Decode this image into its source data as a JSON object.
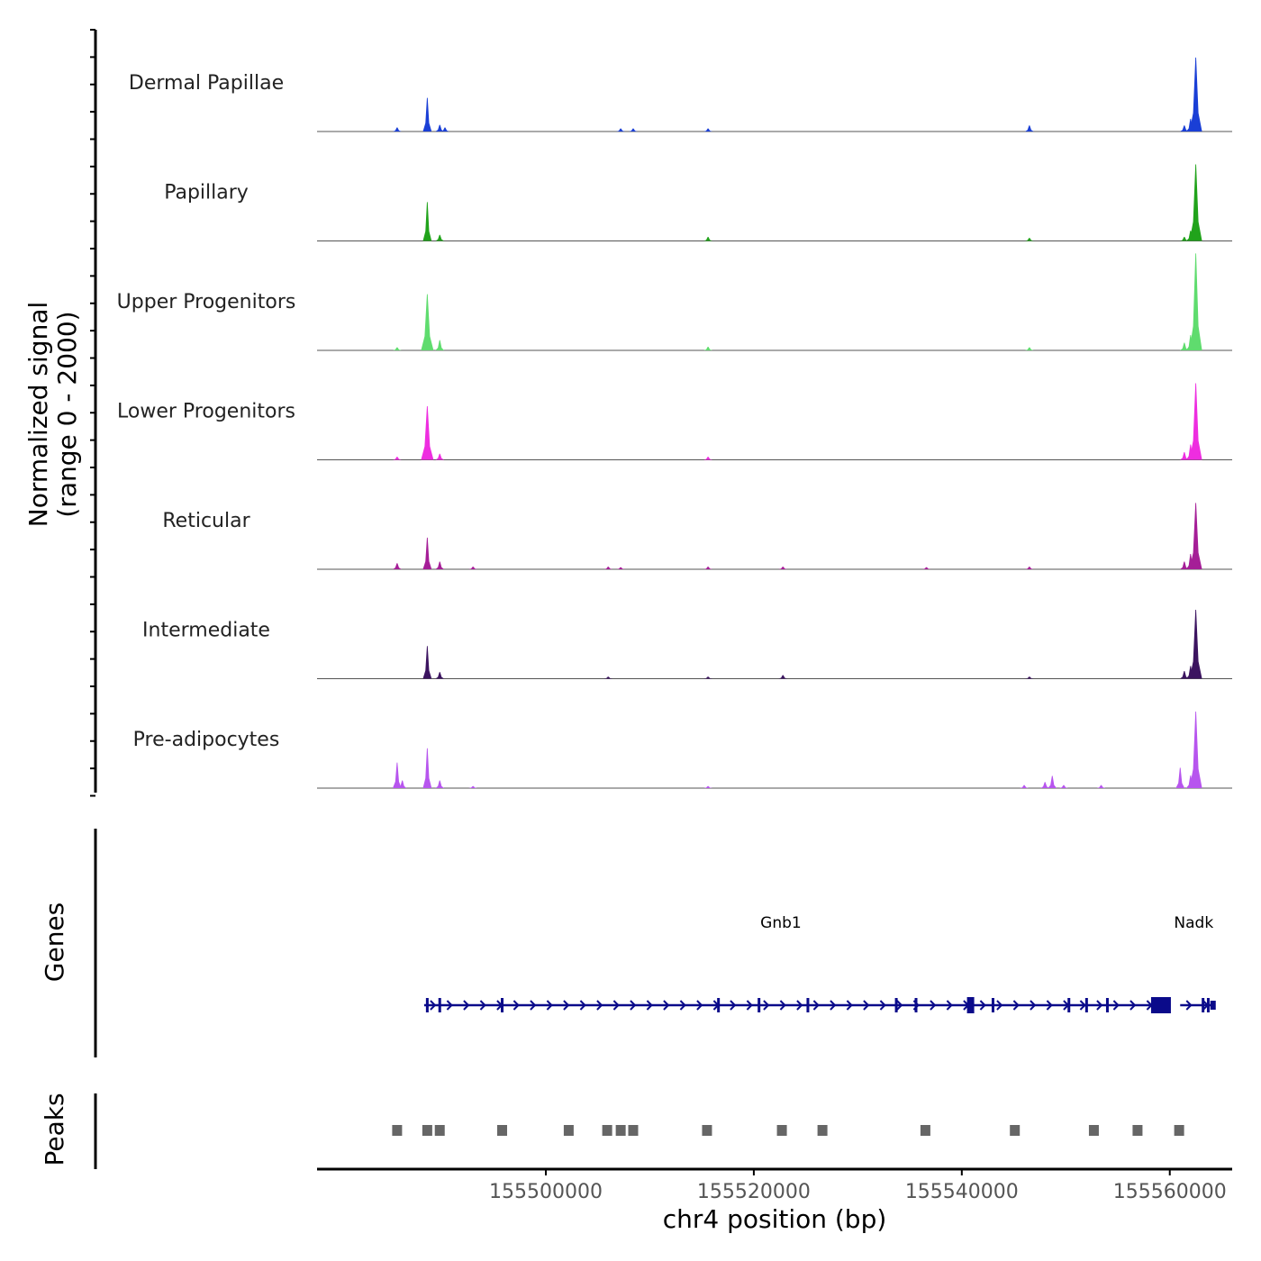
{
  "chart_data": {
    "type": "area",
    "title": "",
    "xlabel": "chr4 position (bp)",
    "ylabel_line1": "Normalized signal",
    "ylabel_line2": "(range 0 - 2000)",
    "xlim": [
      155478000,
      155566000
    ],
    "ylim": [
      0,
      2000
    ],
    "x_ticks": [
      155500000,
      155520000,
      155540000,
      155560000
    ],
    "x_tick_labels": [
      "155500000",
      "155520000",
      "155540000",
      "155560000"
    ],
    "tracks": [
      {
        "name": "Dermal Papillae",
        "color": "#1a3fd6",
        "peaks": [
          {
            "pos": 155485700,
            "h": 80
          },
          {
            "pos": 155488600,
            "h": 660
          },
          {
            "pos": 155489800,
            "h": 130
          },
          {
            "pos": 155490300,
            "h": 80
          },
          {
            "pos": 155507200,
            "h": 60
          },
          {
            "pos": 155508400,
            "h": 60
          },
          {
            "pos": 155515600,
            "h": 60
          },
          {
            "pos": 155546500,
            "h": 120
          },
          {
            "pos": 155561400,
            "h": 120
          },
          {
            "pos": 155562500,
            "h": 1450
          },
          {
            "pos": 155562000,
            "h": 250
          }
        ]
      },
      {
        "name": "Papillary",
        "color": "#21a31b",
        "peaks": [
          {
            "pos": 155488600,
            "h": 760
          },
          {
            "pos": 155489800,
            "h": 120
          },
          {
            "pos": 155515600,
            "h": 80
          },
          {
            "pos": 155546500,
            "h": 60
          },
          {
            "pos": 155561400,
            "h": 80
          },
          {
            "pos": 155562500,
            "h": 1500
          },
          {
            "pos": 155562000,
            "h": 200
          }
        ]
      },
      {
        "name": "Upper Progenitors",
        "color": "#5fdc6e",
        "peaks": [
          {
            "pos": 155485700,
            "h": 60
          },
          {
            "pos": 155488600,
            "h": 1100
          },
          {
            "pos": 155489800,
            "h": 200
          },
          {
            "pos": 155515600,
            "h": 70
          },
          {
            "pos": 155546500,
            "h": 60
          },
          {
            "pos": 155561400,
            "h": 150
          },
          {
            "pos": 155562500,
            "h": 1900
          },
          {
            "pos": 155562000,
            "h": 300
          }
        ]
      },
      {
        "name": "Lower Progenitors",
        "color": "#ee2de0",
        "peaks": [
          {
            "pos": 155485700,
            "h": 60
          },
          {
            "pos": 155488600,
            "h": 1050
          },
          {
            "pos": 155489800,
            "h": 120
          },
          {
            "pos": 155515600,
            "h": 60
          },
          {
            "pos": 155561400,
            "h": 150
          },
          {
            "pos": 155562500,
            "h": 1500
          },
          {
            "pos": 155562000,
            "h": 300
          }
        ]
      },
      {
        "name": "Reticular",
        "color": "#a51e97",
        "peaks": [
          {
            "pos": 155485700,
            "h": 120
          },
          {
            "pos": 155488600,
            "h": 620
          },
          {
            "pos": 155489800,
            "h": 150
          },
          {
            "pos": 155493000,
            "h": 50
          },
          {
            "pos": 155506000,
            "h": 50
          },
          {
            "pos": 155507200,
            "h": 40
          },
          {
            "pos": 155515600,
            "h": 50
          },
          {
            "pos": 155522800,
            "h": 50
          },
          {
            "pos": 155536600,
            "h": 40
          },
          {
            "pos": 155546500,
            "h": 50
          },
          {
            "pos": 155561400,
            "h": 150
          },
          {
            "pos": 155562500,
            "h": 1300
          },
          {
            "pos": 155562000,
            "h": 300
          }
        ]
      },
      {
        "name": "Intermediate",
        "color": "#3c1460",
        "peaks": [
          {
            "pos": 155488600,
            "h": 640
          },
          {
            "pos": 155489800,
            "h": 130
          },
          {
            "pos": 155506000,
            "h": 40
          },
          {
            "pos": 155515600,
            "h": 40
          },
          {
            "pos": 155522800,
            "h": 70
          },
          {
            "pos": 155546500,
            "h": 40
          },
          {
            "pos": 155561400,
            "h": 150
          },
          {
            "pos": 155562500,
            "h": 1350
          },
          {
            "pos": 155562000,
            "h": 250
          }
        ]
      },
      {
        "name": "Pre-adipocytes",
        "color": "#b755ee",
        "peaks": [
          {
            "pos": 155485700,
            "h": 500
          },
          {
            "pos": 155486200,
            "h": 150
          },
          {
            "pos": 155488600,
            "h": 780
          },
          {
            "pos": 155489800,
            "h": 150
          },
          {
            "pos": 155493000,
            "h": 40
          },
          {
            "pos": 155515600,
            "h": 40
          },
          {
            "pos": 155546000,
            "h": 60
          },
          {
            "pos": 155548000,
            "h": 120
          },
          {
            "pos": 155548700,
            "h": 240
          },
          {
            "pos": 155549800,
            "h": 60
          },
          {
            "pos": 155553400,
            "h": 60
          },
          {
            "pos": 155561000,
            "h": 400
          },
          {
            "pos": 155562500,
            "h": 1500
          },
          {
            "pos": 155562000,
            "h": 250
          }
        ]
      }
    ],
    "genes": {
      "label": "Genes",
      "color": "#0a0a8a",
      "items": [
        {
          "name": "Gnb1",
          "start": 155488300,
          "end": 155559700,
          "exons": [
            155488600,
            155489800,
            155495800,
            155516600,
            155520500,
            155525200,
            155533700,
            155535600,
            155540800,
            155543000,
            155550300,
            155552000,
            155554000
          ]
        },
        {
          "name": "Nadk",
          "start": 155561000,
          "end": 155564000,
          "exons": [
            155563200,
            155563700
          ]
        }
      ]
    },
    "peaks": {
      "label": "Peaks",
      "color": "#666666",
      "positions": [
        155485700,
        155488600,
        155489800,
        155495800,
        155502200,
        155505900,
        155507200,
        155508400,
        155515500,
        155522700,
        155526600,
        155536500,
        155545100,
        155552700,
        155556900,
        155560900
      ]
    }
  }
}
